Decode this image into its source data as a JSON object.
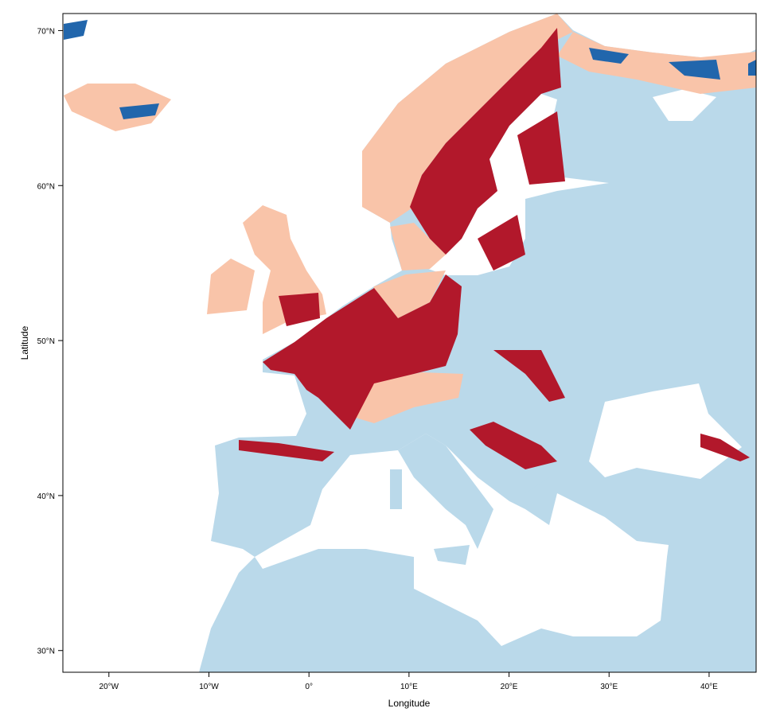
{
  "map": {
    "xlabel": "Longitude",
    "ylabel": "Latitude",
    "x_ticks": [
      {
        "lon": -20,
        "label": "20°W"
      },
      {
        "lon": -10,
        "label": "10°W"
      },
      {
        "lon": 0,
        "label": "0°"
      },
      {
        "lon": 10,
        "label": "10°E"
      },
      {
        "lon": 20,
        "label": "20°E"
      },
      {
        "lon": 30,
        "label": "30°E"
      },
      {
        "lon": 40,
        "label": "40°E"
      }
    ],
    "y_ticks": [
      {
        "lat": 30,
        "label": "30°N"
      },
      {
        "lat": 40,
        "label": "40°N"
      },
      {
        "lat": 50,
        "label": "50°N"
      },
      {
        "lat": 60,
        "label": "60°N"
      },
      {
        "lat": 70,
        "label": "70°N"
      }
    ],
    "extent": {
      "lon": [
        -24.6,
        44.7
      ],
      "lat": [
        28.6,
        71.1
      ]
    },
    "colors": {
      "sea": "#FFFFFF",
      "land_base": "#BAD9EA",
      "class_salmon": "#F9C4A9",
      "class_red": "#B2182B",
      "class_blue": "#2166AC"
    }
  }
}
